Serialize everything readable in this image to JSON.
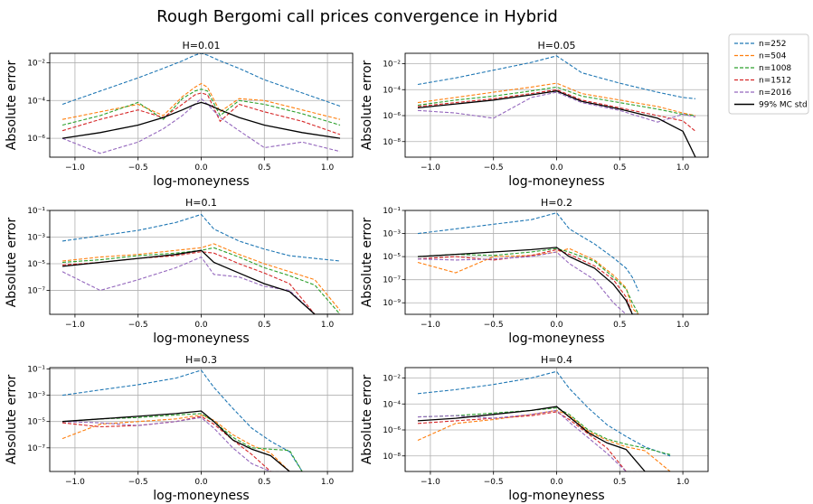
{
  "figure": {
    "title": "Rough Bergomi call prices convergence in Hybrid"
  },
  "legend": {
    "placement": "outside-top-right",
    "entries": [
      {
        "label": "n=252",
        "color": "#1f77b4",
        "style": "dashed"
      },
      {
        "label": "n=504",
        "color": "#ff7f0e",
        "style": "dashed"
      },
      {
        "label": "n=1008",
        "color": "#2ca02c",
        "style": "dashed"
      },
      {
        "label": "n=1512",
        "color": "#d62728",
        "style": "dashed"
      },
      {
        "label": "n=2016",
        "color": "#9467bd",
        "style": "dashed"
      },
      {
        "label": "99% MC std",
        "color": "#000000",
        "style": "solid"
      }
    ]
  },
  "chart_data": [
    {
      "type": "line",
      "title": "H=0.01",
      "xlabel": "log-moneyness",
      "ylabel": "Absolute error",
      "yscale": "log",
      "xlim": [
        -1.2,
        1.2
      ],
      "ylim_exp": [
        -7,
        -1.5
      ],
      "grid": true,
      "xticks": [
        "−1.0",
        "−0.5",
        "0.0",
        "0.5",
        "1.0"
      ],
      "xtick_values": [
        -1.0,
        -0.5,
        0.0,
        0.5,
        1.0
      ],
      "yticks": [
        "10⁻⁶",
        "10⁻⁴",
        "10⁻²"
      ],
      "ytick_values": [
        -6,
        -4,
        -2
      ],
      "x": [
        -1.1,
        -0.8,
        -0.5,
        -0.3,
        -0.15,
        -0.05,
        0.0,
        0.05,
        0.15,
        0.3,
        0.5,
        0.8,
        1.1
      ],
      "series": [
        {
          "name": "n=252",
          "log10_values": [
            -4.2,
            -3.5,
            -2.8,
            -2.3,
            -1.9,
            -1.6,
            -1.4,
            -1.6,
            -1.9,
            -2.3,
            -2.9,
            -3.6,
            -4.3
          ]
        },
        {
          "name": "n=504",
          "log10_values": [
            -5.0,
            -4.6,
            -4.2,
            -4.8,
            -3.8,
            -3.3,
            -3.1,
            -3.3,
            -4.6,
            -3.9,
            -4.0,
            -4.5,
            -5.0
          ]
        },
        {
          "name": "n=1008",
          "log10_values": [
            -5.3,
            -4.8,
            -4.1,
            -5.0,
            -3.9,
            -3.5,
            -3.4,
            -3.5,
            -4.8,
            -4.0,
            -4.2,
            -4.7,
            -5.3
          ]
        },
        {
          "name": "n=1512",
          "log10_values": [
            -5.6,
            -5.0,
            -4.5,
            -4.9,
            -4.2,
            -3.7,
            -3.6,
            -3.7,
            -5.1,
            -4.2,
            -4.6,
            -5.1,
            -5.8
          ]
        },
        {
          "name": "n=2016",
          "log10_values": [
            -6.0,
            -6.8,
            -6.2,
            -5.5,
            -4.8,
            -4.2,
            -3.9,
            -4.2,
            -4.9,
            -5.6,
            -6.5,
            -6.2,
            -6.7
          ]
        },
        {
          "name": "99% MC std",
          "log10_values": [
            -6.0,
            -5.7,
            -5.3,
            -4.9,
            -4.5,
            -4.2,
            -4.1,
            -4.2,
            -4.5,
            -4.9,
            -5.3,
            -5.7,
            -6.0
          ]
        }
      ]
    },
    {
      "type": "line",
      "title": "H=0.05",
      "xlabel": "log-moneyness",
      "ylabel": "Absolute error",
      "yscale": "log",
      "xlim": [
        -1.2,
        1.2
      ],
      "ylim_exp": [
        -9.2,
        -1.2
      ],
      "grid": true,
      "xticks": [
        "−1.0",
        "−0.5",
        "0.0",
        "0.5",
        "1.0"
      ],
      "xtick_values": [
        -1.0,
        -0.5,
        0.0,
        0.5,
        1.0
      ],
      "yticks": [
        "10⁻⁸",
        "10⁻⁶",
        "10⁻⁴",
        "10⁻²"
      ],
      "ytick_values": [
        -8,
        -6,
        -4,
        -2
      ],
      "x": [
        -1.1,
        -0.8,
        -0.5,
        -0.2,
        0.0,
        0.2,
        0.5,
        0.8,
        1.0,
        1.1
      ],
      "series": [
        {
          "name": "n=252",
          "log10_values": [
            -3.6,
            -3.1,
            -2.5,
            -1.9,
            -1.4,
            -2.7,
            -3.5,
            -4.2,
            -4.6,
            -4.7
          ]
        },
        {
          "name": "n=504",
          "log10_values": [
            -5.0,
            -4.6,
            -4.2,
            -3.8,
            -3.5,
            -4.3,
            -4.8,
            -5.3,
            -5.8,
            -6.0
          ]
        },
        {
          "name": "n=1008",
          "log10_values": [
            -5.2,
            -4.8,
            -4.5,
            -4.1,
            -3.8,
            -4.5,
            -5.0,
            -5.5,
            -5.9,
            -6.0
          ]
        },
        {
          "name": "n=1512",
          "log10_values": [
            -5.3,
            -5.0,
            -4.7,
            -4.3,
            -4.0,
            -4.8,
            -5.4,
            -6.0,
            -6.4,
            -7.2
          ]
        },
        {
          "name": "n=2016",
          "log10_values": [
            -5.6,
            -5.8,
            -6.2,
            -4.6,
            -4.2,
            -5.0,
            -5.6,
            -6.5,
            -5.9,
            -6.1
          ]
        },
        {
          "name": "99% MC std",
          "log10_values": [
            -5.4,
            -5.1,
            -4.8,
            -4.4,
            -4.1,
            -4.9,
            -5.5,
            -6.2,
            -7.2,
            -9.2
          ]
        }
      ]
    },
    {
      "type": "line",
      "title": "H=0.1",
      "xlabel": "log-moneyness",
      "ylabel": "Absolute error",
      "yscale": "log",
      "xlim": [
        -1.2,
        1.2
      ],
      "ylim_exp": [
        -8.8,
        -1.0
      ],
      "grid": true,
      "xticks": [
        "−1.0",
        "−0.5",
        "0.0",
        "0.5",
        "1.0"
      ],
      "xtick_values": [
        -1.0,
        -0.5,
        0.0,
        0.5,
        1.0
      ],
      "yticks": [
        "10⁻⁷",
        "10⁻⁵",
        "10⁻³",
        "10⁻¹"
      ],
      "ytick_values": [
        -7,
        -5,
        -3,
        -1
      ],
      "x": [
        -1.1,
        -0.8,
        -0.5,
        -0.2,
        0.0,
        0.1,
        0.3,
        0.5,
        0.7,
        0.9,
        1.1
      ],
      "series": [
        {
          "name": "n=252",
          "log10_values": [
            -3.3,
            -2.9,
            -2.5,
            -1.9,
            -1.3,
            -2.4,
            -3.3,
            -3.9,
            -4.4,
            -4.6,
            -4.8
          ]
        },
        {
          "name": "n=504",
          "log10_values": [
            -4.8,
            -4.5,
            -4.3,
            -4.0,
            -3.8,
            -3.5,
            -4.3,
            -5.0,
            -5.6,
            -6.2,
            -8.5
          ]
        },
        {
          "name": "n=1008",
          "log10_values": [
            -4.9,
            -4.7,
            -4.4,
            -4.2,
            -4.0,
            -3.8,
            -4.5,
            -5.3,
            -5.9,
            -6.6,
            -8.8
          ]
        },
        {
          "name": "n=1512",
          "log10_values": [
            -5.1,
            -4.9,
            -4.6,
            -4.4,
            -4.1,
            -4.2,
            -5.0,
            -5.7,
            -6.5,
            -8.8,
            -8.8
          ]
        },
        {
          "name": "n=2016",
          "log10_values": [
            -5.6,
            -7.0,
            -6.2,
            -5.3,
            -4.5,
            -5.8,
            -6.0,
            -6.7,
            -7.0,
            -8.8,
            -8.8
          ]
        },
        {
          "name": "99% MC std",
          "log10_values": [
            -5.2,
            -4.9,
            -4.6,
            -4.3,
            -4.0,
            -4.9,
            -5.7,
            -6.5,
            -7.1,
            -8.8,
            -8.8
          ]
        }
      ]
    },
    {
      "type": "line",
      "title": "H=0.2",
      "xlabel": "log-moneyness",
      "ylabel": "Absolute error",
      "yscale": "log",
      "xlim": [
        -1.2,
        1.2
      ],
      "ylim_exp": [
        -10,
        -1.0
      ],
      "grid": true,
      "xticks": [
        "−1.0",
        "−0.5",
        "0.0",
        "0.5",
        "1.0"
      ],
      "xtick_values": [
        -1.0,
        -0.5,
        0.0,
        0.5,
        1.0
      ],
      "yticks": [
        "10⁻⁹",
        "10⁻⁷",
        "10⁻⁵",
        "10⁻³",
        "10⁻¹"
      ],
      "ytick_values": [
        -9,
        -7,
        -5,
        -3,
        -1
      ],
      "x": [
        -1.1,
        -0.8,
        -0.5,
        -0.2,
        0.0,
        0.1,
        0.3,
        0.45,
        0.55,
        0.6,
        0.65
      ],
      "series": [
        {
          "name": "n=252",
          "log10_values": [
            -3.0,
            -2.6,
            -2.2,
            -1.8,
            -1.2,
            -2.6,
            -3.9,
            -5.1,
            -6.0,
            -6.8,
            -8.0
          ]
        },
        {
          "name": "n=504",
          "log10_values": [
            -5.5,
            -6.4,
            -5.0,
            -4.9,
            -4.6,
            -4.3,
            -5.3,
            -6.6,
            -7.7,
            -9.5,
            -10
          ]
        },
        {
          "name": "n=1008",
          "log10_values": [
            -5.0,
            -4.8,
            -4.9,
            -4.6,
            -4.3,
            -4.6,
            -5.4,
            -6.8,
            -7.8,
            -9.0,
            -10
          ]
        },
        {
          "name": "n=1512",
          "log10_values": [
            -5.2,
            -5.0,
            -5.3,
            -4.9,
            -4.4,
            -4.8,
            -5.8,
            -7.0,
            -8.5,
            -10,
            -10
          ]
        },
        {
          "name": "n=2016",
          "log10_values": [
            -5.2,
            -5.3,
            -5.2,
            -5.0,
            -4.6,
            -5.6,
            -7.0,
            -9.0,
            -10,
            -10,
            -10
          ]
        },
        {
          "name": "99% MC std",
          "log10_values": [
            -5.0,
            -4.8,
            -4.6,
            -4.4,
            -4.2,
            -5.0,
            -6.0,
            -7.4,
            -8.8,
            -10,
            -10
          ]
        }
      ]
    },
    {
      "type": "line",
      "title": "H=0.3",
      "xlabel": "log-moneyness",
      "ylabel": "Absolute error",
      "yscale": "log",
      "xlim": [
        -1.2,
        1.2
      ],
      "ylim_exp": [
        -8.8,
        -0.9
      ],
      "grid": true,
      "xticks": [
        "−1.0",
        "−0.5",
        "0.0",
        "0.5",
        "1.0"
      ],
      "xtick_values": [
        -1.0,
        -0.5,
        0.0,
        0.5,
        1.0
      ],
      "yticks": [
        "10⁻⁷",
        "10⁻⁵",
        "10⁻³",
        "10⁻¹"
      ],
      "ytick_values": [
        -7,
        -5,
        -3,
        -1
      ],
      "x": [
        -1.1,
        -0.8,
        -0.5,
        -0.2,
        0.0,
        0.1,
        0.25,
        0.4,
        0.55,
        0.7,
        0.8
      ],
      "series": [
        {
          "name": "n=252",
          "log10_values": [
            -3.0,
            -2.6,
            -2.2,
            -1.7,
            -1.1,
            -2.4,
            -4.0,
            -5.5,
            -6.5,
            -7.3,
            -8.8
          ]
        },
        {
          "name": "n=504",
          "log10_values": [
            -6.3,
            -5.2,
            -5.0,
            -4.8,
            -4.5,
            -4.9,
            -6.0,
            -6.8,
            -7.4,
            -8.8,
            -8.8
          ]
        },
        {
          "name": "n=1008",
          "log10_values": [
            -5.0,
            -4.8,
            -4.7,
            -4.5,
            -4.4,
            -5.0,
            -6.2,
            -7.0,
            -7.1,
            -7.2,
            -8.8
          ]
        },
        {
          "name": "n=1512",
          "log10_values": [
            -5.1,
            -5.4,
            -5.3,
            -5.0,
            -4.6,
            -5.2,
            -6.4,
            -7.5,
            -8.8,
            -8.8,
            -8.8
          ]
        },
        {
          "name": "n=2016",
          "log10_values": [
            -5.0,
            -5.1,
            -5.3,
            -5.0,
            -4.7,
            -5.5,
            -7.0,
            -8.2,
            -8.8,
            -8.8,
            -8.8
          ]
        },
        {
          "name": "99% MC std",
          "log10_values": [
            -5.0,
            -4.8,
            -4.6,
            -4.4,
            -4.2,
            -5.0,
            -6.4,
            -7.1,
            -7.6,
            -8.8,
            -8.8
          ]
        }
      ]
    },
    {
      "type": "line",
      "title": "H=0.4",
      "xlabel": "log-moneyness",
      "ylabel": "Absolute error",
      "yscale": "log",
      "xlim": [
        -1.2,
        1.2
      ],
      "ylim_exp": [
        -9.2,
        -1.2
      ],
      "grid": true,
      "xticks": [
        "−1.0",
        "−0.5",
        "0.0",
        "0.5",
        "1.0"
      ],
      "xtick_values": [
        -1.0,
        -0.5,
        0.0,
        0.5,
        1.0
      ],
      "yticks": [
        "10⁻⁸",
        "10⁻⁶",
        "10⁻⁴",
        "10⁻²"
      ],
      "ytick_values": [
        -8,
        -6,
        -4,
        -2
      ],
      "x": [
        -1.1,
        -0.8,
        -0.5,
        -0.2,
        0.0,
        0.1,
        0.25,
        0.4,
        0.55,
        0.7,
        0.9
      ],
      "series": [
        {
          "name": "n=252",
          "log10_values": [
            -3.2,
            -2.9,
            -2.5,
            -2.0,
            -1.5,
            -2.8,
            -4.3,
            -5.6,
            -6.5,
            -7.3,
            -8.0
          ]
        },
        {
          "name": "n=504",
          "log10_values": [
            -6.8,
            -5.5,
            -5.2,
            -4.8,
            -4.5,
            -4.9,
            -6.1,
            -6.8,
            -7.3,
            -7.6,
            -9.2
          ]
        },
        {
          "name": "n=1008",
          "log10_values": [
            -5.0,
            -4.9,
            -4.7,
            -4.5,
            -4.3,
            -4.8,
            -6.0,
            -6.7,
            -7.1,
            -7.4,
            -7.9
          ]
        },
        {
          "name": "n=1512",
          "log10_values": [
            -5.5,
            -5.3,
            -5.1,
            -4.9,
            -4.6,
            -5.2,
            -6.3,
            -7.4,
            -9.2,
            -9.2,
            -9.2
          ]
        },
        {
          "name": "n=2016",
          "log10_values": [
            -5.0,
            -4.9,
            -5.1,
            -4.8,
            -4.5,
            -5.4,
            -6.6,
            -7.8,
            -9.2,
            -9.2,
            -9.2
          ]
        },
        {
          "name": "99% MC std",
          "log10_values": [
            -5.3,
            -5.1,
            -4.8,
            -4.5,
            -4.2,
            -5.0,
            -6.2,
            -7.0,
            -7.5,
            -9.2,
            -9.2
          ]
        }
      ]
    }
  ]
}
